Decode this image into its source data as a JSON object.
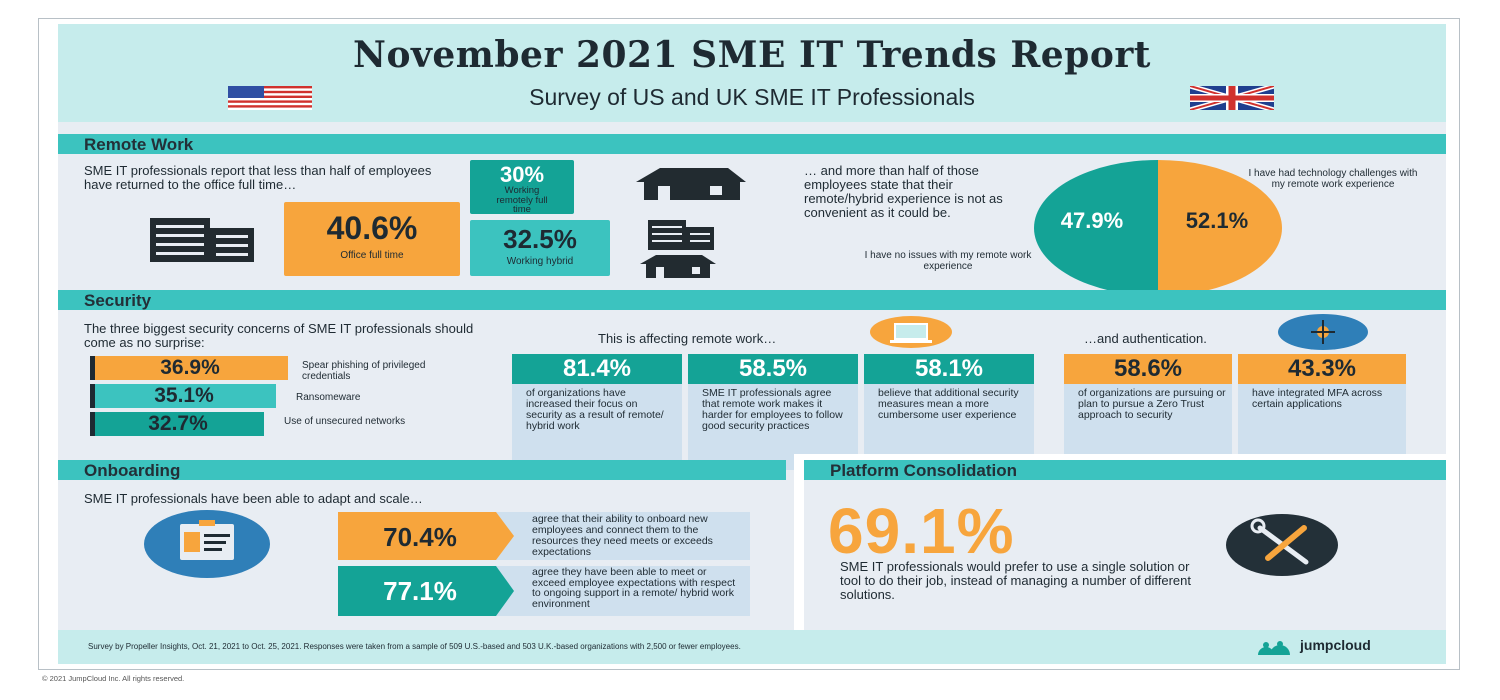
{
  "title": "November 2021 SME IT Trends Report",
  "subtitle": "Survey of US and UK SME IT Professionals",
  "remote": {
    "heading": "Remote Work",
    "intro": "SME IT professionals report that less than half of employees have returned to the office full time…",
    "office_pct": "40.6%",
    "office_label": "Office full time",
    "remote_pct": "30%",
    "remote_label": "Working remotely full time",
    "hybrid_pct": "32.5%",
    "hybrid_label": "Working hybrid",
    "intro2": "… and more than half of those employees state that their remote/hybrid experience is not as convenient as it could be.",
    "pie_left_pct": "47.9%",
    "pie_right_pct": "52.1%",
    "pie_left_label": "I have no issues with my remote work experience",
    "pie_right_label": "I have had technology challenges with my remote work experience"
  },
  "security": {
    "heading": "Security",
    "intro": "The three biggest security concerns of SME IT professionals should come as no surprise:",
    "concerns": [
      {
        "pct": "36.9%",
        "label": "Spear phishing of privileged credentials"
      },
      {
        "pct": "35.1%",
        "label": "Ransomeware"
      },
      {
        "pct": "32.7%",
        "label": "Use of unsecured networks"
      }
    ],
    "remote_heading": "This is affecting remote work…",
    "auth_heading": "…and authentication.",
    "cards": [
      {
        "pct": "81.4%",
        "text": "of organizations have increased their focus on security as a result of remote/ hybrid work"
      },
      {
        "pct": "58.5%",
        "text": "SME IT professionals agree that remote work makes it harder for employees to follow good security practices"
      },
      {
        "pct": "58.1%",
        "text": "believe that additional security measures mean a more cumbersome user experience"
      },
      {
        "pct": "58.6%",
        "text": "of organizations are pursuing or plan to pursue a Zero Trust approach to security"
      },
      {
        "pct": "43.3%",
        "text": "have integrated MFA across certain applications"
      }
    ]
  },
  "onboarding": {
    "heading": "Onboarding",
    "intro": "SME IT professionals have been able to adapt and scale…",
    "stats": [
      {
        "pct": "70.4%",
        "text": "agree that their ability to onboard new employees and connect them to the resources they need meets or exceeds expectations"
      },
      {
        "pct": "77.1%",
        "text": "agree they have been able to meet or exceed employee expectations with respect to ongoing support in a remote/ hybrid work environment"
      }
    ]
  },
  "platform": {
    "heading": "Platform Consolidation",
    "pct": "69.1%",
    "text": "SME IT professionals would prefer to use a single solution or tool to do their job, instead of managing a number of different solutions."
  },
  "footer": {
    "note": "Survey by Propeller Insights, Oct. 21, 2021 to Oct. 25, 2021. Responses were taken from a sample of 509 U.S.-based and 503 U.K.-based organizations with 2,500 or fewer employees.",
    "brand": "jumpcloud"
  },
  "copyright": "© 2021 JumpCloud Inc. All rights reserved.",
  "colors": {
    "teal": "#3cc3bf",
    "dark_teal": "#14a396",
    "orange": "#f7a53d",
    "navy": "#1e2a32"
  }
}
